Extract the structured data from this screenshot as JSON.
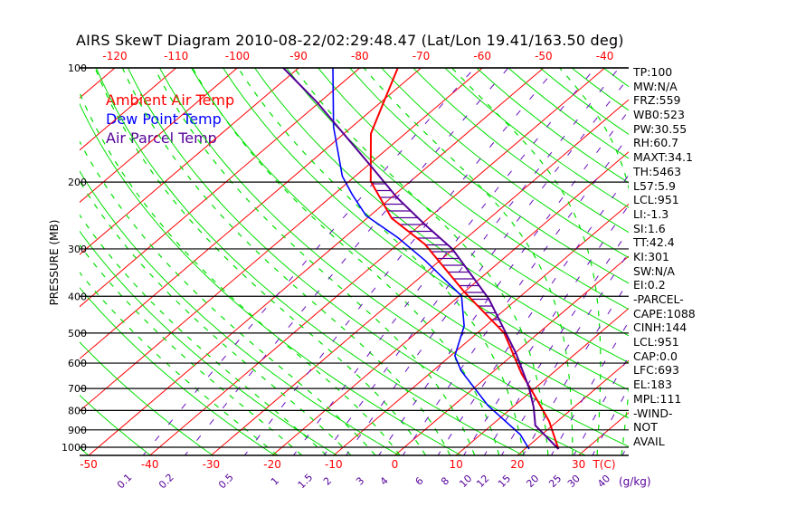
{
  "title": "AIRS SkewT Diagram 2010-08-22/02:29:48.47 (Lat/Lon 19.41/163.50 deg)",
  "legend": [
    {
      "label": "Ambient Air Temp",
      "color": "#ff0000"
    },
    {
      "label": "Dew Point Temp",
      "color": "#0000ff"
    },
    {
      "label": "Air Parcel Temp",
      "color": "#550099"
    }
  ],
  "indices": [
    "TP:100",
    "MW:N/A",
    "FRZ:559",
    "WB0:523",
    "PW:30.55",
    "RH:60.7",
    "MAXT:34.1",
    "TH:5463",
    "L57:5.9",
    "LCL:951",
    "LI:-1.3",
    "SI:1.6",
    "TT:42.4",
    "KI:301",
    "SW:N/A",
    "EI:0.2",
    "-PARCEL-",
    "CAPE:1088",
    "CINH:144",
    "LCL:951",
    "CAP:0.0",
    "LFC:693",
    "EL:183",
    "MPL:111",
    "-WIND-",
    "NOT",
    "AVAIL"
  ],
  "chart_data": {
    "type": "line",
    "subtype": "skew-t log-p",
    "ylabel": "PRESSURE (MB)",
    "xlabel": "T(C)",
    "mixing_ratio_unit": "(g/kg)",
    "pressure_ticks": [
      100,
      200,
      300,
      400,
      500,
      600,
      700,
      800,
      900,
      1000
    ],
    "top_temp_ticks": [
      -120,
      -110,
      -100,
      -90,
      -80,
      -70,
      -60,
      -50,
      -40
    ],
    "bottom_temp_ticks": [
      -50,
      -40,
      -30,
      -20,
      -10,
      0,
      10,
      20,
      30
    ],
    "mixing_ratio_ticks": [
      "0.1",
      "0.2",
      "0.5",
      "1",
      "1.5",
      "2",
      "3",
      "4",
      "6",
      "8",
      "10",
      "12",
      "15",
      "20",
      "25",
      "30",
      "40"
    ],
    "plim": [
      100,
      1050
    ],
    "series": [
      {
        "name": "Ambient Air Temp",
        "color": "#ff0000",
        "points": [
          [
            100,
            -73.8
          ],
          [
            121,
            -69.9
          ],
          [
            149,
            -65.6
          ],
          [
            199,
            -56.5
          ],
          [
            249,
            -46.0
          ],
          [
            292,
            -35.5
          ],
          [
            391,
            -19.8
          ],
          [
            453,
            -11.3
          ],
          [
            500,
            -5.6
          ],
          [
            641,
            5.1
          ],
          [
            704,
            9.6
          ],
          [
            853,
            18.6
          ],
          [
            1011,
            25.5
          ]
        ]
      },
      {
        "name": "Dew Point Temp",
        "color": "#0000ff",
        "points": [
          [
            100,
            -84.4
          ],
          [
            143,
            -73.0
          ],
          [
            193,
            -62.1
          ],
          [
            216,
            -56.9
          ],
          [
            245,
            -50.7
          ],
          [
            280,
            -41.3
          ],
          [
            322,
            -32.4
          ],
          [
            399,
            -19.7
          ],
          [
            479,
            -13.5
          ],
          [
            574,
            -9.3
          ],
          [
            630,
            -5.3
          ],
          [
            777,
            5.7
          ],
          [
            926,
            16.5
          ],
          [
            1011,
            20.7
          ]
        ]
      },
      {
        "name": "Air Parcel Temp",
        "color": "#550099",
        "points": [
          [
            100,
            -92.5
          ],
          [
            123,
            -80.5
          ],
          [
            181,
            -59.5
          ],
          [
            220,
            -49.0
          ],
          [
            259,
            -39.3
          ],
          [
            300,
            -30.2
          ],
          [
            406,
            -14.7
          ],
          [
            564,
            0.1
          ],
          [
            696,
            8.9
          ],
          [
            786,
            13.5
          ],
          [
            876,
            17.2
          ],
          [
            1011,
            25.5
          ]
        ]
      }
    ]
  }
}
